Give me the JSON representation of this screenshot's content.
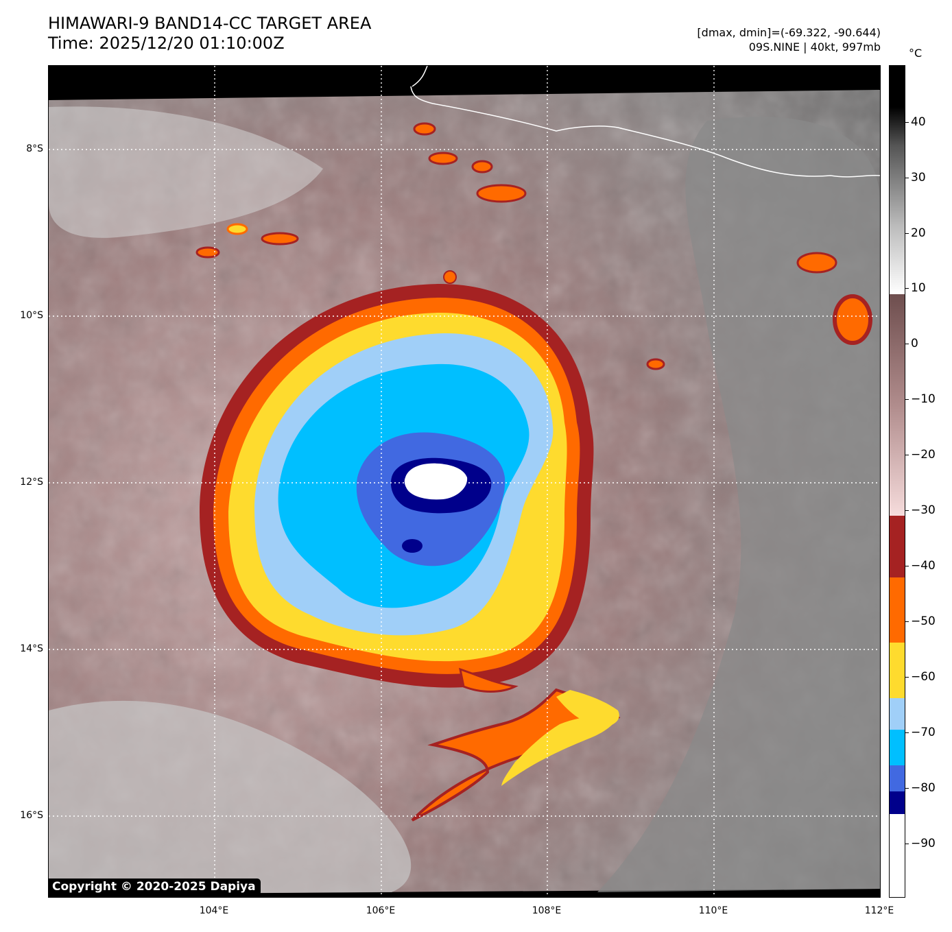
{
  "header": {
    "title_line1": "HIMAWARI-9 BAND14-CC TARGET AREA",
    "title_line2": "Time: 2025/12/20 01:10:00Z",
    "dmax_dmin": "[dmax, dmin]=(-69.322, -90.644)",
    "storm_info": "09S.NINE | 40kt, 997mb"
  },
  "map": {
    "lat_labels": [
      "8°S",
      "10°S",
      "12°S",
      "14°S",
      "16°S"
    ],
    "lon_labels": [
      "104°E",
      "106°E",
      "108°E",
      "110°E",
      "112°E"
    ],
    "lat_values": [
      -8,
      -10,
      -12,
      -14,
      -16
    ],
    "lon_values": [
      104,
      106,
      108,
      110,
      112
    ],
    "lon_range": [
      102,
      112
    ],
    "lat_range": [
      -17,
      -7
    ],
    "gridlines": "dotted white",
    "copyright": "Copyright © 2020-2025 Dapiya"
  },
  "colorbar": {
    "unit": "°C",
    "labels": [
      "40",
      "30",
      "20",
      "10",
      "0",
      "−10",
      "−20",
      "−30",
      "−40",
      "−50",
      "−60",
      "−70",
      "−80",
      "−90"
    ],
    "values": [
      40,
      30,
      20,
      10,
      0,
      -10,
      -20,
      -30,
      -40,
      -50,
      -60,
      -70,
      -80,
      -90
    ],
    "range": [
      -100,
      50
    ],
    "colors": {
      "warm_black": "#000000",
      "warm_gray": "#808080",
      "brown": "#6e4e4e",
      "pink": "#f4d8d8",
      "red": "#a52222",
      "orange": "#ff6a00",
      "yellow": "#fedb2e",
      "light_blue": "#a0cff8",
      "cyan": "#00bfff",
      "royal_blue": "#4169e1",
      "navy": "#00008b",
      "white": "#ffffff"
    }
  }
}
